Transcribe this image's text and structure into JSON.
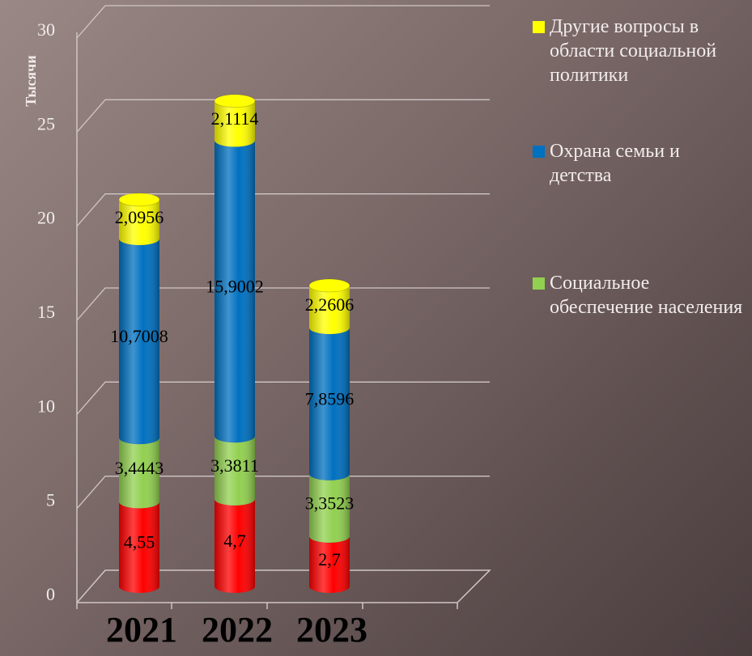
{
  "chart_data": {
    "type": "bar",
    "stacked": true,
    "y_label": "Тысячи",
    "categories": [
      "2021",
      "2022",
      "2023"
    ],
    "series": [
      {
        "color": "#ff0000",
        "values": [
          4.55,
          4.7,
          2.7
        ],
        "value_labels": [
          "4,55",
          "4,7",
          "2,7"
        ]
      },
      {
        "name": "Социальное обеспечение населения",
        "color": "#92d050",
        "values": [
          3.4443,
          3.3811,
          3.3523
        ],
        "value_labels": [
          "3,4443",
          "3,3811",
          "3,3523"
        ]
      },
      {
        "name": "Охрана семьи и детства",
        "color": "#0070c0",
        "values": [
          10.7008,
          15.9002,
          7.8596
        ],
        "value_labels": [
          "10,7008",
          "15,9002",
          "7,8596"
        ]
      },
      {
        "name": "Другие вопросы в области социальной политики",
        "color": "#ffff00",
        "values": [
          2.0956,
          2.1114,
          2.2606
        ],
        "value_labels": [
          "2,0956",
          "2,1114",
          "2,2606"
        ]
      }
    ],
    "ylim": [
      0,
      30
    ],
    "yticks": [
      0,
      5,
      10,
      15,
      20,
      25,
      30
    ],
    "grid": true
  }
}
